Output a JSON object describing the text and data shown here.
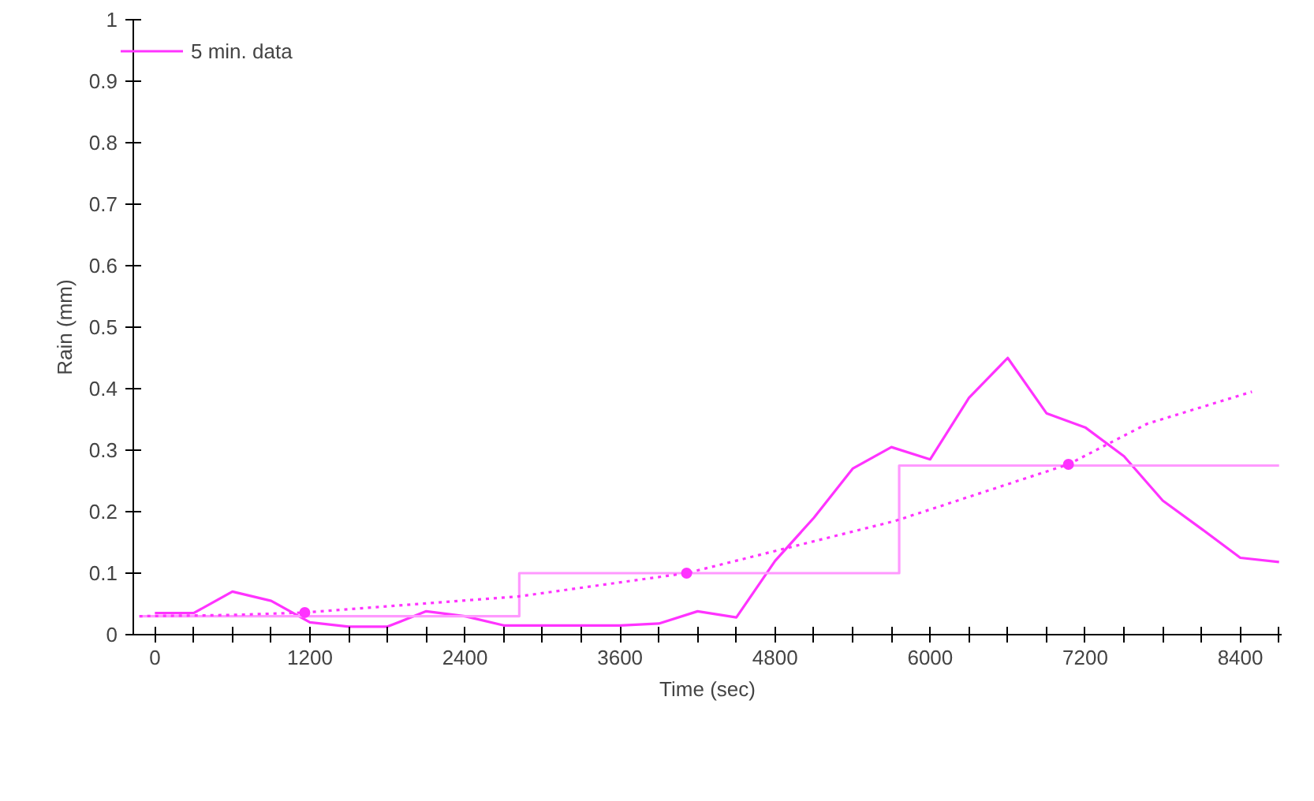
{
  "chart_data": {
    "type": "line",
    "xlabel": "Time (sec)",
    "ylabel": "Rain (mm)",
    "xlim": [
      -167,
      8720
    ],
    "ylim": [
      0,
      1
    ],
    "xticks": [
      0,
      {
        "value": 300,
        "label": null
      },
      {
        "value": 600,
        "label": null
      },
      {
        "value": 900,
        "label": null
      },
      1200,
      {
        "value": 1500,
        "label": null
      },
      {
        "value": 1800,
        "label": null
      },
      {
        "value": 2100,
        "label": null
      },
      2400,
      {
        "value": 2700,
        "label": null
      },
      {
        "value": 3000,
        "label": null
      },
      {
        "value": 3300,
        "label": null
      },
      3600,
      {
        "value": 3900,
        "label": null
      },
      {
        "value": 4200,
        "label": null
      },
      {
        "value": 4500,
        "label": null
      },
      4800,
      {
        "value": 5100,
        "label": null
      },
      {
        "value": 5400,
        "label": null
      },
      {
        "value": 5700,
        "label": null
      },
      6000,
      {
        "value": 6300,
        "label": null
      },
      {
        "value": 6600,
        "label": null
      },
      {
        "value": 6900,
        "label": null
      },
      7200,
      {
        "value": 7500,
        "label": null
      },
      {
        "value": 7800,
        "label": null
      },
      {
        "value": 8100,
        "label": null
      },
      8400,
      {
        "value": 8700,
        "label": null
      }
    ],
    "yticks": [
      0,
      0.1,
      0.2,
      0.3,
      0.4,
      0.5,
      0.6,
      0.7,
      0.8,
      0.9,
      1
    ],
    "grid": false,
    "legend": "top left",
    "series": [
      {
        "name": "5 min. data",
        "color": "#ff33ff",
        "line_style": "solid",
        "marker": "none",
        "x": [
          0,
          300,
          600,
          900,
          1200,
          1500,
          1800,
          2100,
          2400,
          2700,
          3000,
          3300,
          3600,
          3900,
          4200,
          4500,
          4800,
          5100,
          5400,
          5700,
          6000,
          6300,
          6600,
          6900,
          7200,
          7500,
          7800,
          8100,
          8400,
          8700
        ],
        "values": [
          0.035,
          0.035,
          0.07,
          0.055,
          0.02,
          0.013,
          0.013,
          0.038,
          0.03,
          0.015,
          0.015,
          0.015,
          0.015,
          0.018,
          0.038,
          0.028,
          0.12,
          0.19,
          0.27,
          0.305,
          0.285,
          0.385,
          0.45,
          0.36,
          0.337,
          0.29,
          0.218,
          0.172,
          0.125,
          0.118
        ]
      },
      {
        "type": "step",
        "color": "#ff99ff",
        "line_style": "solid",
        "marker": "none",
        "x": [
          -120,
          2820,
          5760,
          8700
        ],
        "values": [
          0.03,
          0.1,
          0.275,
          0.275
        ]
      },
      {
        "type": "line",
        "color": "#ff33ff",
        "line_style": "dotted",
        "marker": "none",
        "x": [
          -120,
          600,
          1160,
          2810,
          4115,
          5730,
          7070,
          7680,
          8490
        ],
        "values": [
          0.03,
          0.032,
          0.036,
          0.062,
          0.1,
          0.185,
          0.277,
          0.343,
          0.395
        ]
      },
      {
        "type": "scatter",
        "color": "#ff33ff",
        "marker": "circle",
        "x": [
          1160,
          4115,
          7070
        ],
        "values": [
          0.036,
          0.1,
          0.277
        ]
      }
    ]
  }
}
